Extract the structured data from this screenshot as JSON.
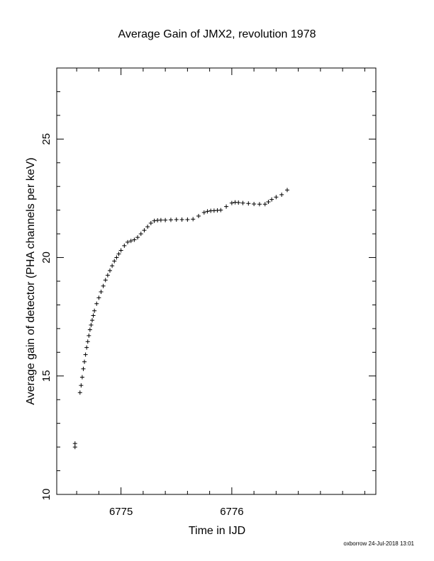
{
  "chart_data": {
    "type": "scatter",
    "title": "Average Gain of JMX2, revolution 1978",
    "xlabel": "Time in IJD",
    "ylabel": "Average gain of detector (PHA channels per keV)",
    "xlim": [
      6774.42,
      6777.3
    ],
    "ylim": [
      10,
      28
    ],
    "x_major_ticks": [
      6775,
      6776
    ],
    "x_minor_step": 0.2,
    "y_major_ticks": [
      10,
      15,
      20,
      25
    ],
    "y_minor_step": 1,
    "marker": "plus",
    "grid": false,
    "series": [
      {
        "x": [
          6774.585,
          6774.585,
          6774.63,
          6774.64,
          6774.65,
          6774.66,
          6774.67,
          6774.68,
          6774.69,
          6774.7,
          6774.71,
          6774.72,
          6774.73,
          6774.74,
          6774.75,
          6774.76,
          6774.78,
          6774.8,
          6774.82,
          6774.84,
          6774.86,
          6774.88,
          6774.9,
          6774.92,
          6774.94,
          6774.96,
          6774.98,
          6775.0,
          6775.03,
          6775.06,
          6775.09,
          6775.12,
          6775.15,
          6775.18,
          6775.21,
          6775.24,
          6775.27,
          6775.3,
          6775.33,
          6775.36,
          6775.4,
          6775.45,
          6775.5,
          6775.55,
          6775.6,
          6775.65,
          6775.7,
          6775.75,
          6775.78,
          6775.81,
          6775.84,
          6775.87,
          6775.9,
          6775.95,
          6776.0,
          6776.03,
          6776.06,
          6776.1,
          6776.15,
          6776.2,
          6776.25,
          6776.3,
          6776.33,
          6776.36,
          6776.4,
          6776.45,
          6776.5
        ],
        "y": [
          12.0,
          12.15,
          14.3,
          14.6,
          14.95,
          15.3,
          15.6,
          15.9,
          16.2,
          16.45,
          16.7,
          16.95,
          17.15,
          17.35,
          17.55,
          17.75,
          18.05,
          18.3,
          18.55,
          18.8,
          19.05,
          19.25,
          19.45,
          19.65,
          19.85,
          20.0,
          20.15,
          20.3,
          20.5,
          20.65,
          20.7,
          20.75,
          20.85,
          21.0,
          21.15,
          21.3,
          21.45,
          21.55,
          21.57,
          21.58,
          21.58,
          21.59,
          21.6,
          21.6,
          21.6,
          21.62,
          21.75,
          21.9,
          21.95,
          21.97,
          21.98,
          21.99,
          22.0,
          22.15,
          22.3,
          22.33,
          22.32,
          22.3,
          22.28,
          22.26,
          22.25,
          22.25,
          22.35,
          22.45,
          22.55,
          22.65,
          22.85
        ]
      }
    ]
  },
  "footer": {
    "stamp": "oxborrow 24-Jul-2018 13:01"
  }
}
